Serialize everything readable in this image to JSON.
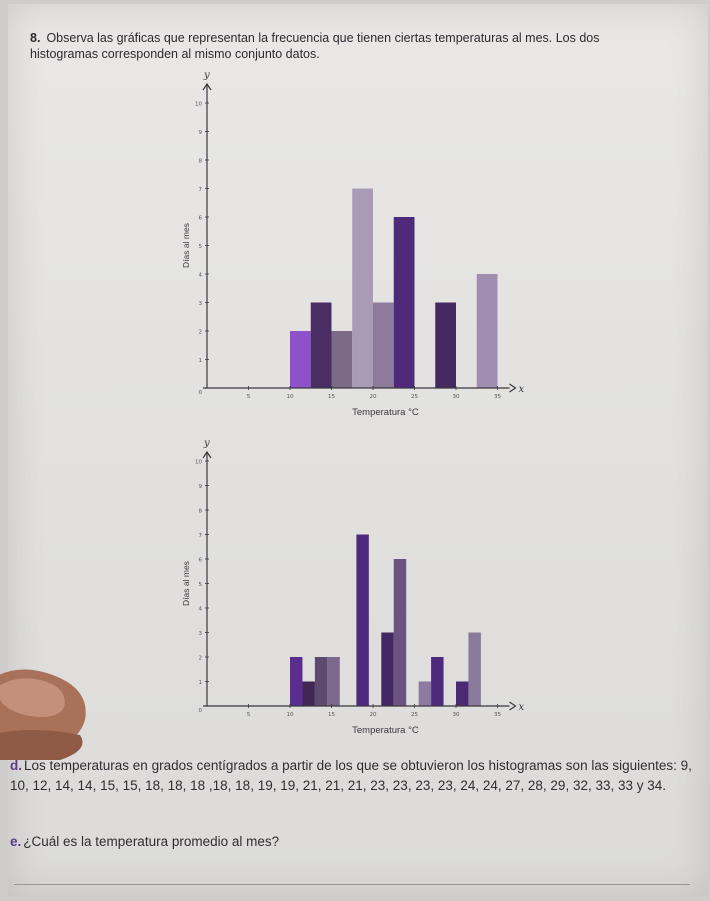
{
  "question": {
    "number": "8.",
    "text": "Observa las gráficas que representan la frecuencia que tienen ciertas temperaturas al mes. Los dos histogramas corresponden al mismo conjunto datos."
  },
  "chart_data": [
    {
      "type": "bar",
      "xlabel": "Temperatura °C",
      "ylabel": "Días al mes",
      "x_axis_letter": "x",
      "y_axis_letter": "y",
      "x_ticks": [
        5,
        10,
        15,
        20,
        25,
        30,
        35
      ],
      "y_ticks": [
        0,
        1,
        2,
        3,
        4,
        5,
        6,
        7,
        8,
        9,
        10
      ],
      "xlim": [
        0,
        35
      ],
      "ylim": [
        0,
        10
      ],
      "grid": false,
      "bars": [
        {
          "x_start": 10,
          "x_end": 12.5,
          "value": 2,
          "color": "#8d52c9"
        },
        {
          "x_start": 12.5,
          "x_end": 15,
          "value": 3,
          "color": "#4a2d63"
        },
        {
          "x_start": 15,
          "x_end": 17.5,
          "value": 2,
          "color": "#7b6a88"
        },
        {
          "x_start": 17.5,
          "x_end": 20,
          "value": 7,
          "color": "#a99bb6"
        },
        {
          "x_start": 20,
          "x_end": 22.5,
          "value": 3,
          "color": "#8e7a9b"
        },
        {
          "x_start": 22.5,
          "x_end": 25,
          "value": 6,
          "color": "#4f2a7a"
        },
        {
          "x_start": 27.5,
          "x_end": 30,
          "value": 3,
          "color": "#452a61"
        },
        {
          "x_start": 32.5,
          "x_end": 35,
          "value": 4,
          "color": "#9f8db0"
        }
      ]
    },
    {
      "type": "bar",
      "xlabel": "Temperatura °C",
      "ylabel": "Días al mes",
      "x_axis_letter": "x",
      "y_axis_letter": "y",
      "x_ticks": [
        5,
        10,
        15,
        20,
        25,
        30,
        35
      ],
      "y_ticks": [
        0,
        1,
        2,
        3,
        4,
        5,
        6,
        7,
        8,
        9,
        10
      ],
      "xlim": [
        0,
        35
      ],
      "ylim": [
        0,
        10
      ],
      "grid": false,
      "bars": [
        {
          "x_start": 10,
          "x_end": 11.5,
          "value": 2,
          "color": "#5a2d8f"
        },
        {
          "x_start": 11.5,
          "x_end": 13,
          "value": 1,
          "color": "#3f2655"
        },
        {
          "x_start": 13,
          "x_end": 14.5,
          "value": 2,
          "color": "#5e4a6f"
        },
        {
          "x_start": 14.5,
          "x_end": 16,
          "value": 2,
          "color": "#7c6a8c"
        },
        {
          "x_start": 18,
          "x_end": 19.5,
          "value": 7,
          "color": "#4e2a7a"
        },
        {
          "x_start": 21,
          "x_end": 22.5,
          "value": 3,
          "color": "#432863"
        },
        {
          "x_start": 22.5,
          "x_end": 24,
          "value": 6,
          "color": "#6a537e"
        },
        {
          "x_start": 25.5,
          "x_end": 27,
          "value": 1,
          "color": "#8e7a9e"
        },
        {
          "x_start": 27,
          "x_end": 28.5,
          "value": 2,
          "color": "#4e2a7a"
        },
        {
          "x_start": 30,
          "x_end": 31.5,
          "value": 1,
          "color": "#4a2a74"
        },
        {
          "x_start": 31.5,
          "x_end": 33,
          "value": 3,
          "color": "#8a7a9c"
        }
      ]
    }
  ],
  "part_d": {
    "letter": "d.",
    "text": "Los temperaturas en grados centígrados a partir de los que se obtuvieron los histogramas son las siguientes: 9, 10, 12, 14, 14, 15, 15, 18, 18, 18 ,18, 18, 19, 19, 21, 21, 21, 23, 23, 23, 23, 24, 24, 27, 28, 29, 32, 33, 33 y 34."
  },
  "part_e": {
    "letter": "e.",
    "text": "¿Cuál es la temperatura promedio al mes?"
  }
}
